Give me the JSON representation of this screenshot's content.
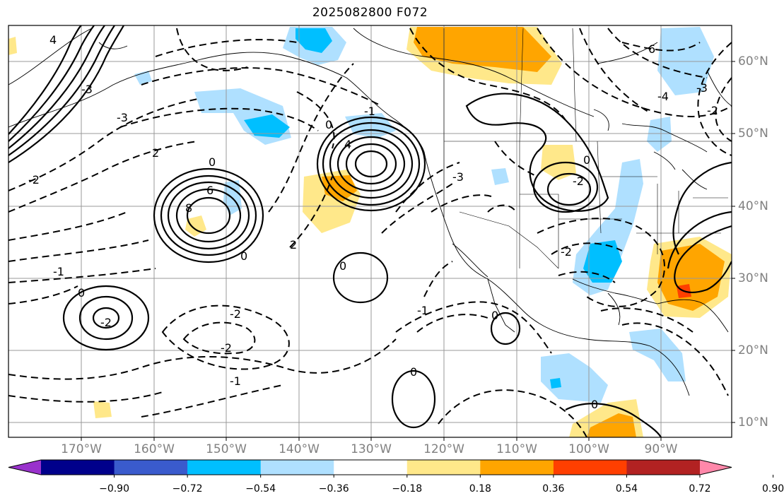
{
  "title": "2025082800 F072",
  "lon_labels": [
    "170°W",
    "160°W",
    "150°W",
    "140°W",
    "130°W",
    "120°W",
    "110°W",
    "100°W",
    "90°W"
  ],
  "lat_labels": [
    "60°N",
    "50°N",
    "40°N",
    "30°N",
    "20°N",
    "10°N"
  ],
  "colorbar": {
    "colors": [
      "#9932cc",
      "#00008b",
      "#3a5bcd",
      "#00bfff",
      "#afe0ff",
      "#ffffff",
      "#ffe88a",
      "#ffa500",
      "#ff3f00",
      "#b22222",
      "#ff88aa"
    ],
    "ticks": [
      "−0.90",
      "−0.72",
      "−0.54",
      "−0.36",
      "−0.18",
      "0.18",
      "0.36",
      "0.54",
      "0.72",
      "0.90"
    ]
  },
  "contour_labels": [
    {
      "text": "4"
    },
    {
      "text": "6"
    },
    {
      "text": "-6"
    },
    {
      "text": "-4"
    },
    {
      "text": "-3"
    },
    {
      "text": "-3"
    },
    {
      "text": "-2"
    },
    {
      "text": "-1"
    },
    {
      "text": "0"
    },
    {
      "text": "0"
    },
    {
      "text": "0"
    },
    {
      "text": "0"
    },
    {
      "text": "2"
    },
    {
      "text": "2"
    },
    {
      "text": "-2"
    },
    {
      "text": "-2"
    },
    {
      "text": "-1"
    },
    {
      "text": "0"
    },
    {
      "text": "-2"
    },
    {
      "text": "-1"
    },
    {
      "text": "0"
    },
    {
      "text": "-2"
    },
    {
      "text": "4"
    },
    {
      "text": "6"
    },
    {
      "text": "8"
    },
    {
      "text": "-3"
    },
    {
      "text": "4"
    },
    {
      "text": "-1"
    },
    {
      "text": "0"
    },
    {
      "text": "-3"
    },
    {
      "text": "0"
    },
    {
      "text": "0"
    },
    {
      "text": "-2"
    },
    {
      "text": "-2"
    }
  ]
}
